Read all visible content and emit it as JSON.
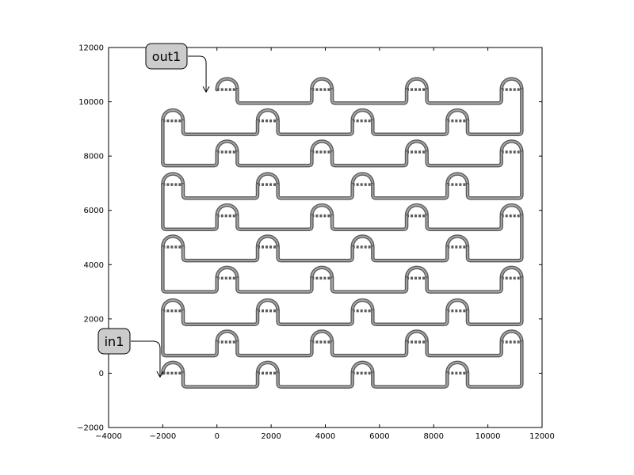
{
  "chart_data": {
    "type": "diagram",
    "title": "",
    "xlabel": "",
    "ylabel": "",
    "xlim": [
      -4000,
      12000
    ],
    "ylim": [
      -2000,
      12000
    ],
    "x_ticks": [
      -4000,
      -2000,
      0,
      2000,
      4000,
      6000,
      8000,
      10000,
      12000
    ],
    "y_ticks": [
      -2000,
      0,
      2000,
      4000,
      6000,
      8000,
      10000,
      12000
    ],
    "x_tick_labels": [
      "−4000",
      "−2000",
      "0",
      "2000",
      "4000",
      "6000",
      "8000",
      "10000",
      "12000"
    ],
    "y_tick_labels": [
      "−2000",
      "0",
      "2000",
      "4000",
      "6000",
      "8000",
      "10000",
      "12000"
    ],
    "grid": false,
    "rows": [
      {
        "y": 0,
        "loop_x": [
          -2000,
          1500,
          5000,
          8500
        ],
        "return_y": -500
      },
      {
        "y": 1150,
        "loop_x": [
          0,
          3500,
          7000,
          10500
        ],
        "return_y": 650
      },
      {
        "y": 2300,
        "loop_x": [
          -2000,
          1500,
          5000,
          8500
        ],
        "return_y": 1800
      },
      {
        "y": 3500,
        "loop_x": [
          0,
          3500,
          7000,
          10500
        ],
        "return_y": 3000
      },
      {
        "y": 4650,
        "loop_x": [
          -2000,
          1500,
          5000,
          8500
        ],
        "return_y": 4150
      },
      {
        "y": 5800,
        "loop_x": [
          0,
          3500,
          7000,
          10500
        ],
        "return_y": 5300
      },
      {
        "y": 6950,
        "loop_x": [
          -2000,
          1500,
          5000,
          8500
        ],
        "return_y": 6450
      },
      {
        "y": 8150,
        "loop_x": [
          0,
          3500,
          7000,
          10500
        ],
        "return_y": 7650
      },
      {
        "y": 9300,
        "loop_x": [
          -2000,
          1500,
          5000,
          8500
        ],
        "return_y": 8800
      },
      {
        "y": 10450,
        "loop_x": [
          0,
          3500,
          7000,
          10500
        ],
        "return_y": 9950
      }
    ],
    "loop_width": 750,
    "ports": [
      {
        "name": "in1",
        "x": -2100,
        "y": -200
      },
      {
        "name": "out1",
        "x": -400,
        "y": 10300
      }
    ]
  }
}
